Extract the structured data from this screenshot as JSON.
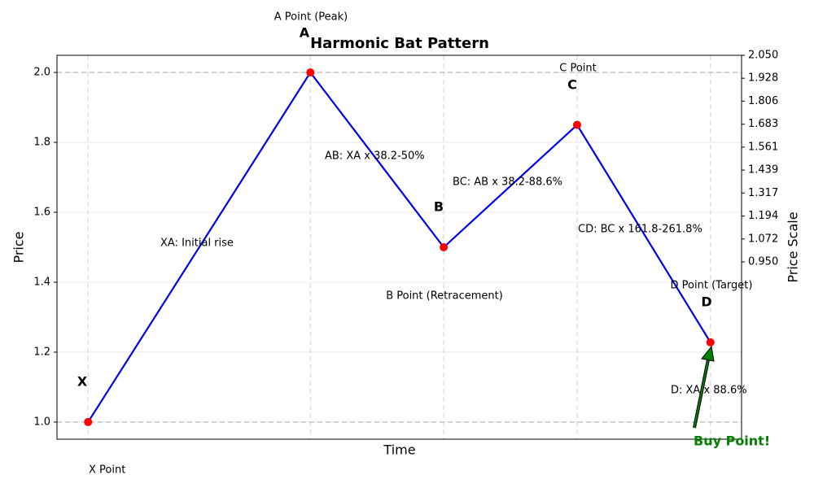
{
  "chart_data": {
    "type": "line",
    "title": "Harmonic Bat Pattern",
    "x_label": "Time",
    "y_label": "Price",
    "y2_label": "Price Scale",
    "x": [
      0,
      5,
      8,
      11,
      14
    ],
    "values": [
      1.0,
      2.0,
      1.5,
      1.85,
      1.228
    ],
    "color": "#0000ee",
    "marker_color": "#ff0000",
    "xlim": [
      -0.7,
      14.7
    ],
    "ylim": [
      0.951,
      2.049
    ],
    "yticks": [
      {
        "value": 1.0,
        "label": "1.0"
      },
      1.2,
      1.4,
      1.6,
      1.8,
      {
        "value": 2.0,
        "label": "2.0"
      }
    ],
    "y2lim": [
      0.006,
      2.05
    ],
    "y2ticks": [
      {
        "value": 0.95,
        "label": "0.950"
      },
      {
        "value": 1.072,
        "label": "1.072"
      },
      {
        "value": 1.194,
        "label": "1.194"
      },
      {
        "value": 1.317,
        "label": "1.317"
      },
      {
        "value": 1.439,
        "label": "1.439"
      },
      {
        "value": 1.561,
        "label": "1.561"
      },
      {
        "value": 1.683,
        "label": "1.683"
      },
      {
        "value": 1.806,
        "label": "1.806"
      },
      {
        "value": 1.928,
        "label": "1.928"
      },
      {
        "value": 2.05,
        "label": "2.050"
      }
    ],
    "hlines": [
      1.0,
      2.0
    ],
    "grid": true,
    "point_letters": [
      "X",
      "A",
      "B",
      "C",
      "D"
    ],
    "point_labels": [
      "X Point",
      "A Point (Peak)",
      "B Point (Retracement)",
      "C Point",
      "D Point (Target)"
    ],
    "leg_labels": [
      "XA: Initial rise",
      "AB: XA x 38.2-50%",
      "BC: AB x 38.2-88.6%",
      "CD: BC x 161.8-261.8%",
      "D: XA x 88.6%"
    ],
    "buy_label": "Buy Point!",
    "buy_color": "#008000"
  }
}
